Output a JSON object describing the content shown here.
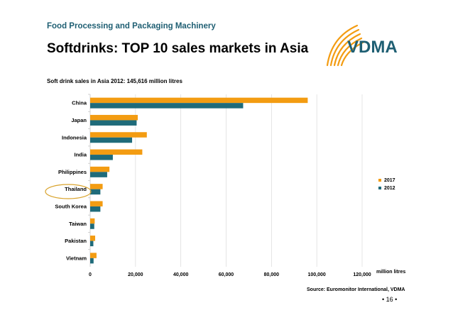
{
  "header": {
    "kicker": "Food Processing and Packaging Machinery",
    "title": "Softdrinks: TOP 10 sales markets in Asia",
    "subtitle": "Soft drink sales in Asia 2012: 145,616 million litres"
  },
  "logo": {
    "text": "VDMA",
    "icon": "vdma-arc-logo"
  },
  "footer": {
    "source": "Source: Euromonitor International, VDMA",
    "page": "• 16 •"
  },
  "colors": {
    "s2017": "#F39C12",
    "s2012": "#1F6B7A",
    "grid": "#d9d9d9",
    "highlight": "#d9a32c"
  },
  "chart_data": {
    "type": "bar",
    "orientation": "horizontal",
    "title": "",
    "xlabel": "million litres",
    "ylabel": "",
    "xlim": [
      0,
      120000
    ],
    "ticks": [
      0,
      20000,
      40000,
      60000,
      80000,
      100000,
      120000
    ],
    "tick_labels": [
      "0",
      "20,000",
      "40,000",
      "60,000",
      "80,000",
      "100,000",
      "120,000"
    ],
    "categories": [
      "China",
      "Japan",
      "Indonesia",
      "India",
      "Philippines",
      "Thailand",
      "South Korea",
      "Taiwan",
      "Pakistan",
      "Vietnam"
    ],
    "series": [
      {
        "name": "2017",
        "values": [
          96000,
          21000,
          25000,
          23000,
          8500,
          5500,
          5500,
          2000,
          2200,
          2800
        ]
      },
      {
        "name": "2012",
        "values": [
          67500,
          20500,
          18500,
          10000,
          7500,
          4500,
          4500,
          1800,
          1400,
          1500
        ]
      }
    ],
    "highlight_category": "Thailand",
    "legend": [
      "2017",
      "2012"
    ],
    "legend_position": "right"
  }
}
